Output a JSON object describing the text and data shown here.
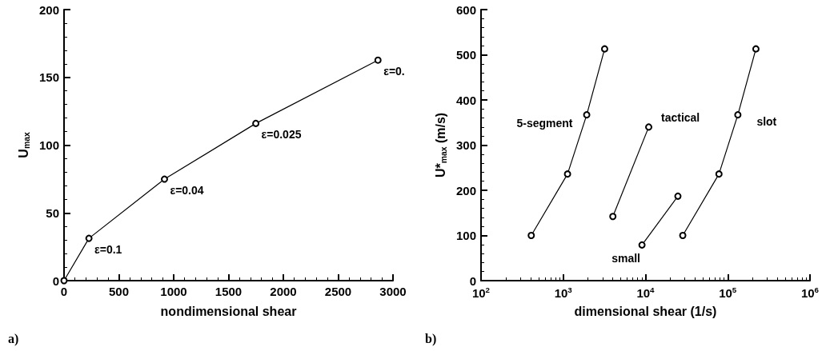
{
  "chart_data": [
    {
      "type": "line",
      "xlabel": "nondimensional shear",
      "ylabel": "U$_{max}$",
      "xlim": [
        0,
        3000
      ],
      "xticks": [
        0,
        500,
        1000,
        1500,
        2000,
        2500,
        3000
      ],
      "ylim": [
        0,
        200
      ],
      "yticks": [
        0,
        50,
        100,
        150,
        200
      ],
      "marker": "circle",
      "grid": false,
      "legend": false,
      "series": [
        {
          "color": "#000000",
          "x": [
            0,
            227,
            916,
            1749,
            2863
          ],
          "values": [
            0,
            31.2,
            74.9,
            116,
            162.7
          ]
        }
      ],
      "annotations": [
        {
          "text": "ε=0.1",
          "x": 227,
          "y": 31.2
        },
        {
          "text": "ε=0.04",
          "x": 916,
          "y": 74.9
        },
        {
          "text": "ε=0.025",
          "x": 1749,
          "y": 116
        },
        {
          "text": "ε=0.",
          "x": 2863,
          "y": 162.7
        },
        "a)"
      ]
    },
    {
      "type": "line",
      "log": "x",
      "xlabel": "dimensional shear (1/s)",
      "ylabel": "U*$_{max}$ (m/s)",
      "xlim": [
        100,
        1000000
      ],
      "xticks": [
        {
          "value": 100,
          "label": "10$^{2}$"
        },
        {
          "value": 1000,
          "label": "10$^{3}$"
        },
        {
          "value": 10000,
          "label": "10$^{4}$"
        },
        {
          "value": 100000,
          "label": "10$^{5}$"
        },
        {
          "value": 1000000,
          "label": "10$^{6}$"
        }
      ],
      "ylim": [
        0,
        600
      ],
      "yticks": [
        0,
        100,
        200,
        300,
        400,
        500,
        600
      ],
      "marker": "circle",
      "grid": false,
      "legend": false,
      "series": [
        {
          "name": "5-segment",
          "color": "#000000",
          "x": [
            408,
            1127,
            1928,
            3185
          ],
          "values": [
            100,
            236,
            367,
            513
          ]
        },
        {
          "name": "tactical",
          "color": "#000000",
          "x": [
            4009,
            10940
          ],
          "values": [
            142,
            340
          ]
        },
        {
          "name": "small",
          "color": "#000000",
          "x": [
            9060,
            24770
          ],
          "values": [
            79,
            187
          ]
        },
        {
          "name": "slot",
          "color": "#000000",
          "x": [
            28380,
            78200,
            132700,
            220000
          ],
          "values": [
            100,
            236,
            367,
            513
          ]
        }
      ],
      "annotations": [
        "b)"
      ]
    }
  ]
}
